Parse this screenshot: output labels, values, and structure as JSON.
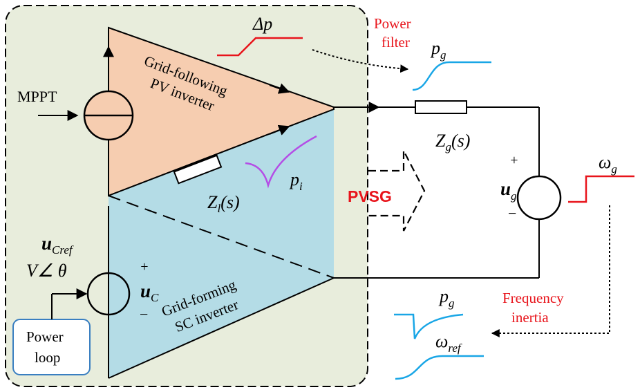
{
  "colors": {
    "panel_bg": "#e8eddc",
    "pv_fill": "#f6cdb0",
    "sc_fill": "#b4dce6",
    "accent_red": "#e8141b",
    "blue_curve": "#19a6e6",
    "purple_curve": "#b44ee6",
    "power_loop_stroke": "#3a7fc1"
  },
  "labels": {
    "mppt": "MPPT",
    "pv_line1": "Grid-following",
    "pv_line2": "PV inverter",
    "sc_line1": "Grid-forming",
    "sc_line2": "SC inverter",
    "delta_p": "Δp",
    "power_filter_1": "Power",
    "power_filter_2": "filter",
    "pg_top": "p",
    "pg_top_sub": "g",
    "zg": "Z",
    "zg_sub": "g",
    "zg_tail": "(s)",
    "zl": "Z",
    "zl_sub": "l",
    "zl_tail": "(s)",
    "pi": "p",
    "pi_sub": "i",
    "pvsg": "PVSG",
    "ug": "u",
    "ug_sub": "g",
    "plus": "+",
    "minus": "−",
    "omega_g": "ω",
    "omega_g_sub": "g",
    "ucref": "u",
    "ucref_sub": "Cref",
    "v_angle": "V∠ θ",
    "uc": "u",
    "uc_sub": "C",
    "power_loop_1": "Power",
    "power_loop_2": "loop",
    "freq_inertia_1": "Frequency",
    "freq_inertia_2": "inertia",
    "pg_bottom": "p",
    "pg_bottom_sub": "g",
    "omega_ref": "ω",
    "omega_ref_sub": "ref"
  },
  "icons": {
    "current_source": "current-source-icon",
    "voltage_source": "voltage-source-icon",
    "impedance": "resistor-icon"
  }
}
